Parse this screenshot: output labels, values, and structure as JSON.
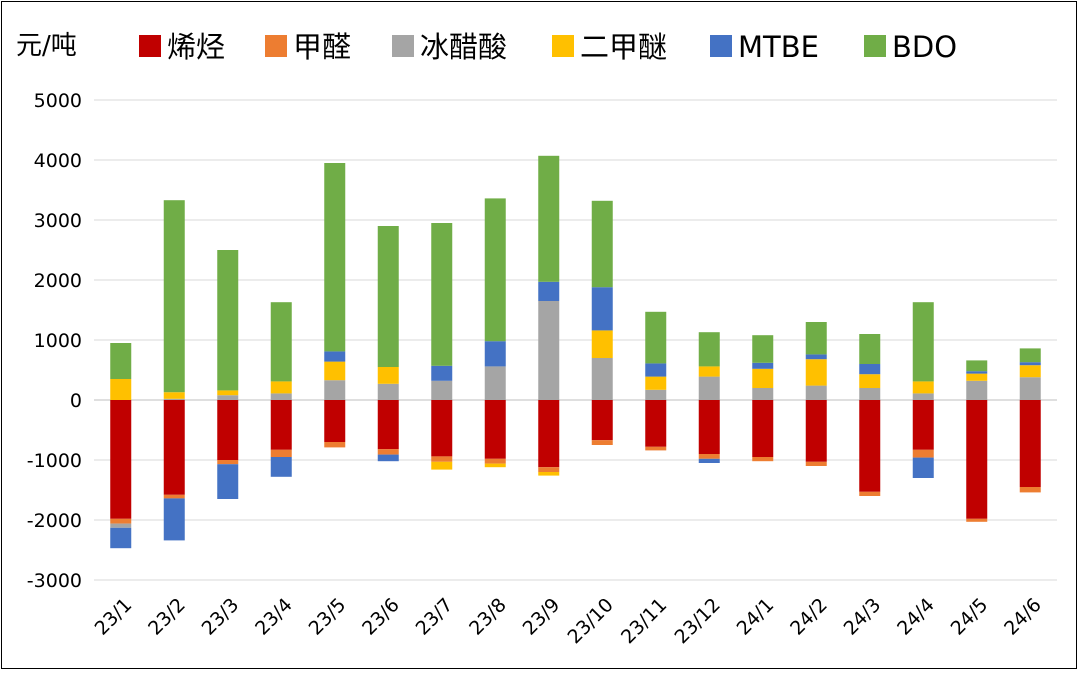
{
  "chart_data": {
    "type": "bar",
    "stacked": true,
    "ylabel": "元/吨",
    "ylim": [
      -3000,
      5000
    ],
    "yticks": [
      5000,
      4000,
      3000,
      2000,
      1000,
      0,
      -1000,
      -2000,
      -3000
    ],
    "grid": true,
    "legend_position": "top",
    "categories": [
      "23/1",
      "23/2",
      "23/3",
      "23/4",
      "23/5",
      "23/6",
      "23/7",
      "23/8",
      "23/9",
      "23/10",
      "23/11",
      "23/12",
      "24/1",
      "24/2",
      "24/3",
      "24/4",
      "24/5",
      "24/6"
    ],
    "series": [
      {
        "name": "烯烃",
        "color": "#C00000",
        "values": [
          -1980,
          -1580,
          -1000,
          -830,
          -700,
          -820,
          -940,
          -980,
          -1120,
          -670,
          -780,
          -900,
          -950,
          -1030,
          -1530,
          -830,
          -1980,
          -1450
        ]
      },
      {
        "name": "甲醛",
        "color": "#ED7D31",
        "values": [
          -80,
          -60,
          -70,
          -120,
          -90,
          -90,
          -90,
          -80,
          -80,
          -80,
          -60,
          -80,
          -70,
          -70,
          -70,
          -130,
          -50,
          -90
        ]
      },
      {
        "name": "冰醋酸",
        "color": "#A5A5A5",
        "values": [
          -70,
          20,
          80,
          110,
          330,
          270,
          320,
          560,
          1650,
          700,
          170,
          390,
          200,
          240,
          200,
          110,
          320,
          380
        ]
      },
      {
        "name": "二甲醚",
        "color": "#FFC000",
        "values": [
          350,
          110,
          80,
          200,
          310,
          280,
          -130,
          -60,
          -60,
          460,
          220,
          170,
          320,
          440,
          230,
          200,
          120,
          200
        ]
      },
      {
        "name": "MTBE",
        "color": "#4472C4",
        "values": [
          -340,
          -700,
          -580,
          -330,
          170,
          -110,
          250,
          420,
          320,
          720,
          220,
          -70,
          100,
          80,
          170,
          -340,
          40,
          50
        ]
      },
      {
        "name": "BDO",
        "color": "#70AD47",
        "values": [
          600,
          3200,
          2340,
          1320,
          3140,
          2350,
          2380,
          2380,
          2100,
          1440,
          860,
          570,
          460,
          540,
          500,
          1320,
          180,
          230
        ]
      }
    ]
  }
}
